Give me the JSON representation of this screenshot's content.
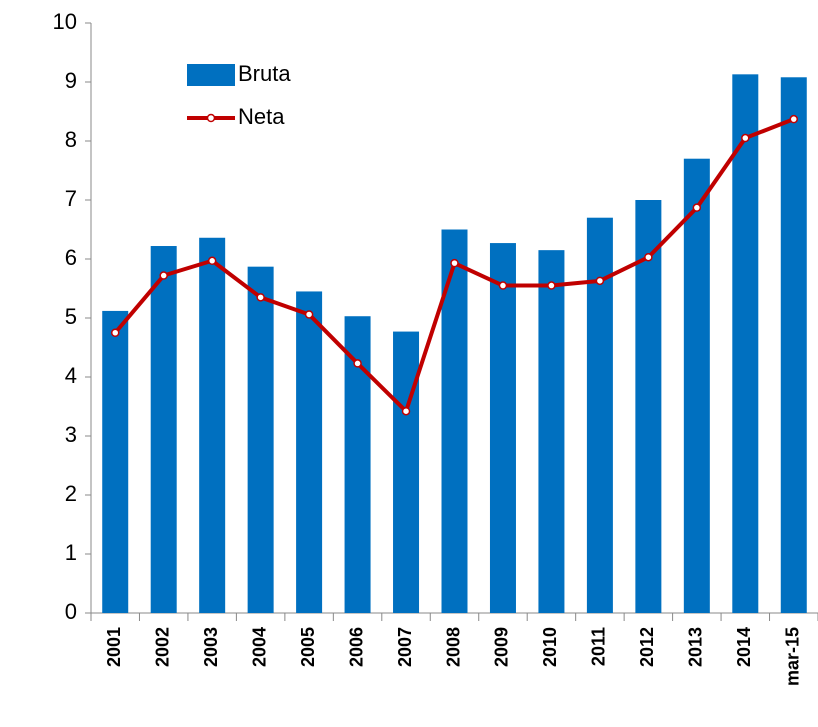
{
  "chart_data": {
    "type": "bar_line",
    "categories": [
      "2001",
      "2002",
      "2003",
      "2004",
      "2005",
      "2006",
      "2007",
      "2008",
      "2009",
      "2010",
      "2011",
      "2012",
      "2013",
      "2014",
      "mar-15"
    ],
    "series": [
      {
        "name": "Bruta",
        "type": "bar",
        "color": "#0070c0",
        "values": [
          5.12,
          6.22,
          6.36,
          5.87,
          5.45,
          5.03,
          4.77,
          6.5,
          6.27,
          6.15,
          6.7,
          7.0,
          7.7,
          9.13,
          9.08
        ]
      },
      {
        "name": "Neta",
        "type": "line",
        "color": "#c00000",
        "values": [
          4.75,
          5.72,
          5.97,
          5.35,
          5.06,
          4.23,
          3.42,
          5.93,
          5.55,
          5.55,
          5.63,
          6.03,
          6.87,
          8.05,
          8.37
        ]
      }
    ],
    "ylim": [
      0,
      10
    ],
    "yticks": [
      0,
      1,
      2,
      3,
      4,
      5,
      6,
      7,
      8,
      9,
      10
    ],
    "legend": "upper left"
  }
}
